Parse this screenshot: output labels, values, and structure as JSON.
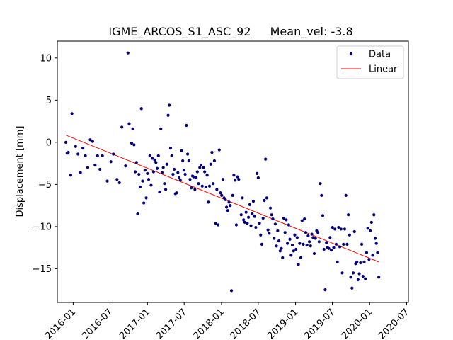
{
  "chart_data": {
    "type": "scatter",
    "title_name": "IGME_ARCOS_S1_ASC_92",
    "title_stat": "Mean_vel: -3.8",
    "xlabel": "",
    "ylabel": "Displacement [mm]",
    "xlim": [
      "2015-10-15",
      "2020-07-10"
    ],
    "ylim": [
      -19,
      12
    ],
    "x_ticks": [
      "2016-01",
      "2016-07",
      "2017-01",
      "2017-07",
      "2018-01",
      "2018-07",
      "2019-01",
      "2019-07",
      "2020-01",
      "2020-07"
    ],
    "y_ticks": [
      10,
      5,
      0,
      -5,
      -10,
      -15
    ],
    "grid": false,
    "legend_position": "top-right",
    "colors": {
      "data": "#00007f",
      "linear": "#ff0000"
    },
    "series": [
      {
        "name": "Data",
        "kind": "points",
        "points": [
          [
            "2015-11-26",
            0.0
          ],
          [
            "2015-12-02",
            -1.3
          ],
          [
            "2015-12-08",
            -1.2
          ],
          [
            "2015-12-20",
            -3.9
          ],
          [
            "2015-12-26",
            3.4
          ],
          [
            "2016-01-13",
            -0.5
          ],
          [
            "2016-01-25",
            -1.4
          ],
          [
            "2016-02-06",
            -3.6
          ],
          [
            "2016-02-18",
            -0.7
          ],
          [
            "2016-03-01",
            -1.6
          ],
          [
            "2016-03-13",
            -3.0
          ],
          [
            "2016-03-25",
            0.3
          ],
          [
            "2016-04-06",
            0.1
          ],
          [
            "2016-04-18",
            -2.7
          ],
          [
            "2016-04-30",
            -1.6
          ],
          [
            "2016-05-12",
            -3.2
          ],
          [
            "2016-05-24",
            -1.6
          ],
          [
            "2016-06-17",
            -4.6
          ],
          [
            "2016-07-05",
            -2.3
          ],
          [
            "2016-07-17",
            -1.4
          ],
          [
            "2016-08-04",
            -4.4
          ],
          [
            "2016-08-16",
            -4.8
          ],
          [
            "2016-08-28",
            1.8
          ],
          [
            "2016-09-15",
            -2.8
          ],
          [
            "2016-09-27",
            10.6
          ],
          [
            "2016-10-03",
            2.2
          ],
          [
            "2016-10-15",
            -0.1
          ],
          [
            "2016-10-21",
            1.6
          ],
          [
            "2016-10-27",
            -0.3
          ],
          [
            "2016-11-02",
            -3.5
          ],
          [
            "2016-11-08",
            -2.4
          ],
          [
            "2016-11-14",
            -8.5
          ],
          [
            "2016-11-20",
            -3.8
          ],
          [
            "2016-11-26",
            -5.3
          ],
          [
            "2016-12-02",
            4.0
          ],
          [
            "2016-12-08",
            -4.6
          ],
          [
            "2016-12-14",
            -7.2
          ],
          [
            "2016-12-20",
            -3.3
          ],
          [
            "2016-12-26",
            -6.6
          ],
          [
            "2017-01-01",
            -3.7
          ],
          [
            "2017-01-07",
            -4.4
          ],
          [
            "2017-01-13",
            -1.6
          ],
          [
            "2017-01-19",
            -5.1
          ],
          [
            "2017-01-25",
            -1.9
          ],
          [
            "2017-01-31",
            -3.5
          ],
          [
            "2017-02-06",
            -2.1
          ],
          [
            "2017-02-12",
            -2.4
          ],
          [
            "2017-02-18",
            -3.1
          ],
          [
            "2017-02-24",
            -1.6
          ],
          [
            "2017-03-02",
            -5.9
          ],
          [
            "2017-03-08",
            1.6
          ],
          [
            "2017-03-14",
            -3.6
          ],
          [
            "2017-03-20",
            -3.0
          ],
          [
            "2017-03-26",
            -4.9
          ],
          [
            "2017-04-01",
            -5.6
          ],
          [
            "2017-04-07",
            -2.6
          ],
          [
            "2017-04-13",
            3.2
          ],
          [
            "2017-04-19",
            4.4
          ],
          [
            "2017-04-25",
            -0.7
          ],
          [
            "2017-05-01",
            -1.6
          ],
          [
            "2017-05-07",
            -3.8
          ],
          [
            "2017-05-13",
            -3.2
          ],
          [
            "2017-05-19",
            -6.1
          ],
          [
            "2017-05-25",
            -6.0
          ],
          [
            "2017-05-31",
            -3.6
          ],
          [
            "2017-06-06",
            -4.2
          ],
          [
            "2017-06-12",
            -4.5
          ],
          [
            "2017-06-18",
            -1.0
          ],
          [
            "2017-06-24",
            -2.2
          ],
          [
            "2017-06-30",
            -3.3
          ],
          [
            "2017-07-06",
            -3.8
          ],
          [
            "2017-07-12",
            2.0
          ],
          [
            "2017-07-18",
            -1.4
          ],
          [
            "2017-07-24",
            -2.2
          ],
          [
            "2017-07-30",
            -4.4
          ],
          [
            "2017-08-05",
            -5.4
          ],
          [
            "2017-08-11",
            -4.0
          ],
          [
            "2017-08-17",
            -4.1
          ],
          [
            "2017-08-23",
            -5.6
          ],
          [
            "2017-08-29",
            -4.2
          ],
          [
            "2017-09-04",
            -3.5
          ],
          [
            "2017-09-10",
            -4.9
          ],
          [
            "2017-09-16",
            -3.0
          ],
          [
            "2017-09-22",
            -2.7
          ],
          [
            "2017-09-28",
            -5.2
          ],
          [
            "2017-10-04",
            -3.0
          ],
          [
            "2017-10-10",
            -3.5
          ],
          [
            "2017-10-16",
            -5.3
          ],
          [
            "2017-10-22",
            -3.9
          ],
          [
            "2017-10-28",
            -7.1
          ],
          [
            "2017-11-03",
            -5.2
          ],
          [
            "2017-11-09",
            -2.6
          ],
          [
            "2017-11-15",
            -1.2
          ],
          [
            "2017-11-21",
            -4.9
          ],
          [
            "2017-11-27",
            -2.2
          ],
          [
            "2017-12-03",
            -9.6
          ],
          [
            "2017-12-09",
            -5.6
          ],
          [
            "2017-12-15",
            -9.8
          ],
          [
            "2017-12-21",
            -0.9
          ],
          [
            "2017-12-27",
            -6.0
          ],
          [
            "2018-01-02",
            -6.3
          ],
          [
            "2018-01-08",
            -4.4
          ],
          [
            "2018-01-14",
            -6.6
          ],
          [
            "2018-01-20",
            -6.8
          ],
          [
            "2018-01-26",
            -7.7
          ],
          [
            "2018-02-01",
            -8.1
          ],
          [
            "2018-02-07",
            -7.1
          ],
          [
            "2018-02-13",
            -7.5
          ],
          [
            "2018-02-19",
            -17.6
          ],
          [
            "2018-02-25",
            -6.3
          ],
          [
            "2018-03-03",
            -3.9
          ],
          [
            "2018-03-09",
            -4.5
          ],
          [
            "2018-03-15",
            -9.8
          ],
          [
            "2018-03-21",
            -4.1
          ],
          [
            "2018-03-27",
            -4.4
          ],
          [
            "2018-04-08",
            -8.6
          ],
          [
            "2018-04-14",
            -6.6
          ],
          [
            "2018-04-20",
            -9.2
          ],
          [
            "2018-04-26",
            -9.5
          ],
          [
            "2018-05-02",
            -8.3
          ],
          [
            "2018-05-08",
            -9.6
          ],
          [
            "2018-05-14",
            -8.9
          ],
          [
            "2018-05-20",
            -7.4
          ],
          [
            "2018-05-26",
            -9.9
          ],
          [
            "2018-06-01",
            -8.5
          ],
          [
            "2018-06-07",
            -7.0
          ],
          [
            "2018-06-13",
            -8.8
          ],
          [
            "2018-06-19",
            -10.1
          ],
          [
            "2018-06-25",
            -3.7
          ],
          [
            "2018-07-01",
            -4.2
          ],
          [
            "2018-07-07",
            -9.6
          ],
          [
            "2018-07-13",
            -11.0
          ],
          [
            "2018-07-19",
            -12.1
          ],
          [
            "2018-07-25",
            -9.0
          ],
          [
            "2018-07-31",
            -6.9
          ],
          [
            "2018-08-06",
            -2.0
          ],
          [
            "2018-08-12",
            -6.6
          ],
          [
            "2018-08-18",
            -10.4
          ],
          [
            "2018-08-24",
            -10.8
          ],
          [
            "2018-08-30",
            -7.8
          ],
          [
            "2018-09-05",
            -8.6
          ],
          [
            "2018-09-11",
            -9.1
          ],
          [
            "2018-09-17",
            -11.4
          ],
          [
            "2018-09-23",
            -9.7
          ],
          [
            "2018-09-29",
            -12.3
          ],
          [
            "2018-10-05",
            -10.5
          ],
          [
            "2018-10-11",
            -11.7
          ],
          [
            "2018-10-17",
            -12.9
          ],
          [
            "2018-10-23",
            -12.6
          ],
          [
            "2018-10-29",
            -13.7
          ],
          [
            "2018-11-04",
            -9.0
          ],
          [
            "2018-11-10",
            -10.7
          ],
          [
            "2018-11-16",
            -9.2
          ],
          [
            "2018-11-22",
            -12.0
          ],
          [
            "2018-11-28",
            -9.8
          ],
          [
            "2018-12-04",
            -11.5
          ],
          [
            "2018-12-10",
            -13.4
          ],
          [
            "2018-12-16",
            -12.2
          ],
          [
            "2018-12-22",
            -12.9
          ],
          [
            "2018-12-28",
            -11.0
          ],
          [
            "2019-01-03",
            -12.7
          ],
          [
            "2019-01-09",
            -11.3
          ],
          [
            "2019-01-15",
            -14.5
          ],
          [
            "2019-01-21",
            -12.0
          ],
          [
            "2019-01-27",
            -13.7
          ],
          [
            "2019-02-02",
            -9.3
          ],
          [
            "2019-02-08",
            -12.1
          ],
          [
            "2019-02-14",
            -9.1
          ],
          [
            "2019-02-20",
            -10.7
          ],
          [
            "2019-02-26",
            -12.2
          ],
          [
            "2019-03-04",
            -11.1
          ],
          [
            "2019-03-10",
            -11.8
          ],
          [
            "2019-03-16",
            -12.3
          ],
          [
            "2019-03-22",
            -10.9
          ],
          [
            "2019-03-28",
            -11.3
          ],
          [
            "2019-04-03",
            -13.2
          ],
          [
            "2019-04-09",
            -11.4
          ],
          [
            "2019-04-15",
            -10.5
          ],
          [
            "2019-04-21",
            -10.7
          ],
          [
            "2019-04-27",
            -11.8
          ],
          [
            "2019-05-03",
            -4.9
          ],
          [
            "2019-05-09",
            -6.3
          ],
          [
            "2019-05-15",
            -8.7
          ],
          [
            "2019-05-21",
            -12.7
          ],
          [
            "2019-05-27",
            -17.5
          ],
          [
            "2019-06-02",
            -11.9
          ],
          [
            "2019-06-08",
            -12.5
          ],
          [
            "2019-06-14",
            -12.6
          ],
          [
            "2019-06-20",
            -11.3
          ],
          [
            "2019-06-26",
            -12.8
          ],
          [
            "2019-07-02",
            -10.1
          ],
          [
            "2019-07-08",
            -12.5
          ],
          [
            "2019-07-14",
            -10.3
          ],
          [
            "2019-07-20",
            -12.1
          ],
          [
            "2019-07-26",
            -14.2
          ],
          [
            "2019-08-01",
            -10.1
          ],
          [
            "2019-08-07",
            -12.4
          ],
          [
            "2019-08-13",
            -10.3
          ],
          [
            "2019-08-19",
            -15.5
          ],
          [
            "2019-08-25",
            -12.1
          ],
          [
            "2019-08-31",
            -10.3
          ],
          [
            "2019-09-06",
            -6.3
          ],
          [
            "2019-09-12",
            -12.1
          ],
          [
            "2019-09-18",
            -8.6
          ],
          [
            "2019-09-24",
            -11.0
          ],
          [
            "2019-09-30",
            -16.0
          ],
          [
            "2019-10-06",
            -17.3
          ],
          [
            "2019-10-12",
            -15.5
          ],
          [
            "2019-10-18",
            -10.6
          ],
          [
            "2019-10-24",
            -14.4
          ],
          [
            "2019-10-30",
            -14.2
          ],
          [
            "2019-11-05",
            -16.3
          ],
          [
            "2019-11-11",
            -15.6
          ],
          [
            "2019-11-17",
            -14.3
          ],
          [
            "2019-11-23",
            -12.1
          ],
          [
            "2019-11-29",
            -15.9
          ],
          [
            "2019-12-05",
            -14.2
          ],
          [
            "2019-12-11",
            -16.2
          ],
          [
            "2019-12-17",
            -13.1
          ],
          [
            "2019-12-23",
            -10.2
          ],
          [
            "2019-12-29",
            -13.9
          ],
          [
            "2020-01-04",
            -10.5
          ],
          [
            "2020-01-10",
            -9.5
          ],
          [
            "2020-01-16",
            -13.4
          ],
          [
            "2020-01-22",
            -8.6
          ],
          [
            "2020-01-28",
            -11.4
          ],
          [
            "2020-02-03",
            -12.0
          ],
          [
            "2020-02-09",
            -13.1
          ],
          [
            "2020-02-15",
            -16.0
          ]
        ]
      },
      {
        "name": "Linear",
        "kind": "line",
        "points": [
          [
            "2015-11-26",
            0.85
          ],
          [
            "2020-02-15",
            -14.2
          ]
        ]
      }
    ]
  }
}
